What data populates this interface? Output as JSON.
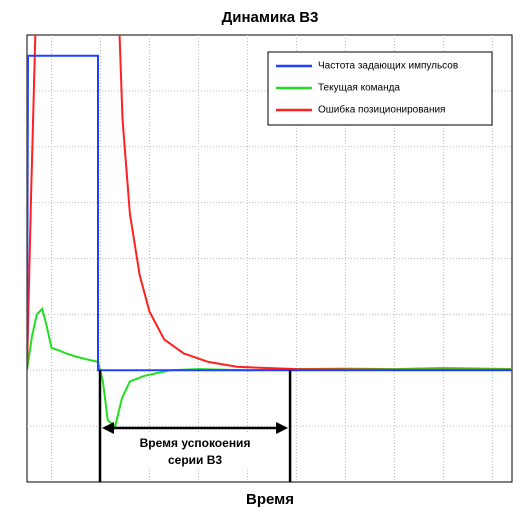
{
  "chart_data": {
    "type": "line",
    "title": "Динамика В3",
    "x_label": "Время",
    "xlim": [
      -0.5,
      9.4
    ],
    "ylim": [
      -2,
      6
    ],
    "xgrid": [
      0,
      1,
      2,
      3,
      4,
      5,
      6,
      7,
      8,
      9
    ],
    "ygrid": [
      -1,
      0,
      1,
      2,
      3,
      4,
      5
    ],
    "grid": true,
    "legend": "upper right",
    "series": [
      {
        "name": "Частота задающих импульсов",
        "color": "#2040ff",
        "x": [
          -0.5,
          -0.48,
          0.95,
          0.95,
          9.4
        ],
        "values": [
          0,
          5.63,
          5.63,
          0,
          0
        ]
      },
      {
        "name": "Текущая команда",
        "color": "#22dd22",
        "x": [
          -0.5,
          -0.4,
          -0.3,
          -0.19,
          -0.1,
          0.0,
          0.17,
          0.3,
          0.48,
          0.7,
          0.95,
          1.05,
          1.15,
          1.3,
          1.44,
          1.6,
          1.9,
          2.42,
          3.0,
          4.0,
          5.0,
          6.0,
          7.0,
          8.0,
          9.4
        ],
        "values": [
          0,
          0.6,
          1.0,
          1.1,
          0.8,
          0.4,
          0.35,
          0.3,
          0.25,
          0.2,
          0.15,
          -0.2,
          -0.9,
          -1.0,
          -0.5,
          -0.2,
          -0.1,
          0,
          0.02,
          0,
          0.02,
          0.03,
          0.02,
          0.04,
          0.02
        ]
      },
      {
        "name": "Ошибка позиционирования",
        "color": "#ff2020",
        "x": [
          -0.5,
          -0.42,
          -0.3,
          1.35,
          1.45,
          1.6,
          1.8,
          2.0,
          2.3,
          2.7,
          3.2,
          3.8,
          5.0,
          7.0,
          9.4
        ],
        "values": [
          0,
          3,
          7,
          7,
          4.5,
          2.8,
          1.7,
          1.05,
          0.55,
          0.3,
          0.15,
          0.06,
          0.02,
          0.01,
          0.01
        ]
      }
    ],
    "annotation": {
      "lines": [
        "Время успокоения",
        "серии В3"
      ],
      "x_start": 0.99,
      "x_end": 4.87
    }
  }
}
